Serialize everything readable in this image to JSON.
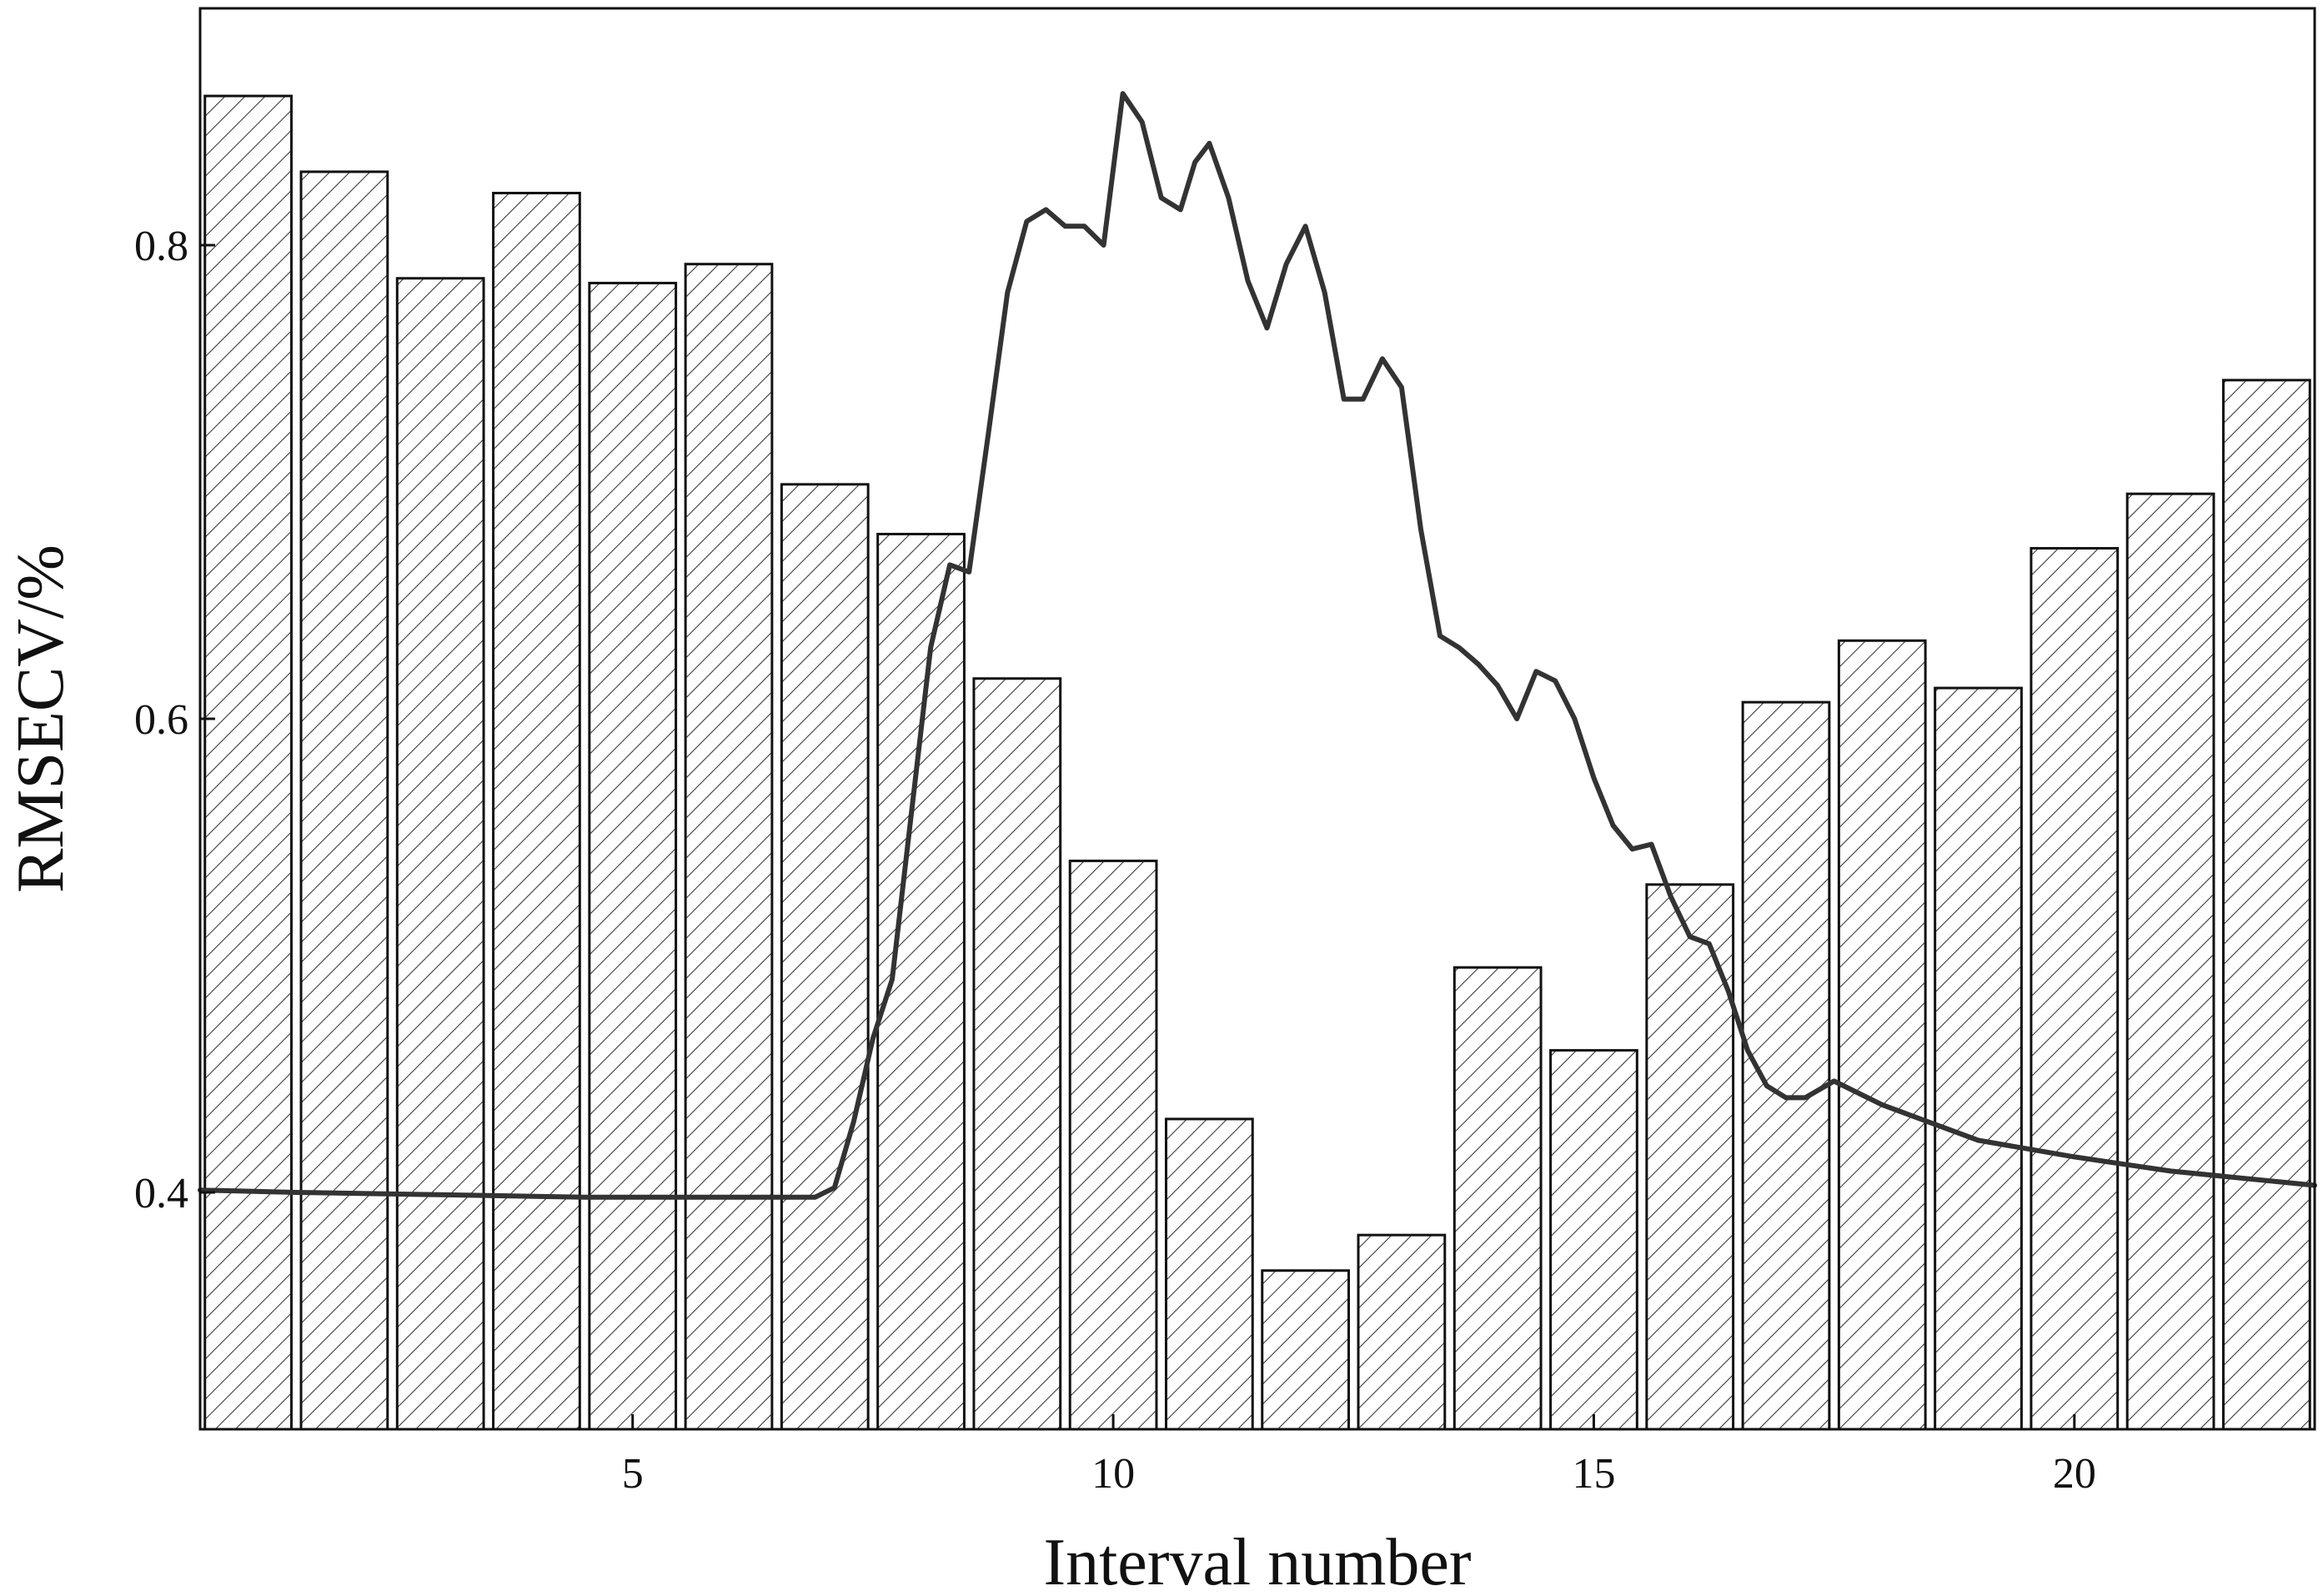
{
  "chart_data": {
    "type": "bar",
    "title": "",
    "xlabel": "Interval number",
    "ylabel": "RMSECV/%",
    "categories": [
      1,
      2,
      3,
      4,
      5,
      6,
      7,
      8,
      9,
      10,
      11,
      12,
      13,
      14,
      15,
      16,
      17,
      18,
      19,
      20,
      21,
      22
    ],
    "x_ticks": [
      5,
      10,
      15,
      20
    ],
    "y_ticks": [
      "0.4",
      "0.6",
      "0.8"
    ],
    "xlim": [
      0.5,
      22.5
    ],
    "ylim": [
      0.3,
      0.9
    ],
    "grid": false,
    "legend": "none",
    "series": [
      {
        "type": "bar",
        "pattern": "diagonal-hatch",
        "values": [
          0.863,
          0.831,
          0.786,
          0.822,
          0.784,
          0.792,
          0.699,
          0.678,
          0.617,
          0.54,
          0.431,
          0.367,
          0.382,
          0.495,
          0.46,
          0.53,
          0.607,
          0.633,
          0.613,
          0.672,
          0.695,
          0.743
        ]
      },
      {
        "type": "line",
        "x": [
          0.5,
          1.5,
          3.0,
          4.5,
          6.0,
          6.6,
          6.9,
          7.1,
          7.3,
          7.5,
          7.7,
          7.9,
          8.1,
          8.3,
          8.5,
          8.7,
          8.9,
          9.1,
          9.3,
          9.5,
          9.7,
          9.9,
          10.1,
          10.3,
          10.5,
          10.7,
          10.85,
          11.0,
          11.2,
          11.4,
          11.6,
          11.8,
          12.0,
          12.2,
          12.4,
          12.6,
          12.8,
          13.0,
          13.2,
          13.4,
          13.6,
          13.8,
          14.0,
          14.2,
          14.4,
          14.6,
          14.8,
          15.0,
          15.2,
          15.4,
          15.6,
          15.8,
          16.0,
          16.2,
          16.4,
          16.6,
          16.8,
          17.0,
          17.2,
          17.5,
          18.0,
          19.0,
          20.0,
          21.0,
          22.5
        ],
        "y": [
          0.401,
          0.4,
          0.399,
          0.398,
          0.398,
          0.398,
          0.398,
          0.402,
          0.43,
          0.465,
          0.49,
          0.56,
          0.63,
          0.665,
          0.662,
          0.72,
          0.78,
          0.81,
          0.815,
          0.808,
          0.808,
          0.8,
          0.864,
          0.852,
          0.82,
          0.815,
          0.835,
          0.843,
          0.82,
          0.785,
          0.765,
          0.792,
          0.808,
          0.78,
          0.735,
          0.735,
          0.752,
          0.74,
          0.68,
          0.635,
          0.63,
          0.623,
          0.614,
          0.6,
          0.62,
          0.616,
          0.6,
          0.575,
          0.555,
          0.545,
          0.547,
          0.525,
          0.508,
          0.505,
          0.485,
          0.46,
          0.445,
          0.44,
          0.44,
          0.447,
          0.437,
          0.422,
          0.415,
          0.409,
          0.403
        ]
      }
    ]
  }
}
